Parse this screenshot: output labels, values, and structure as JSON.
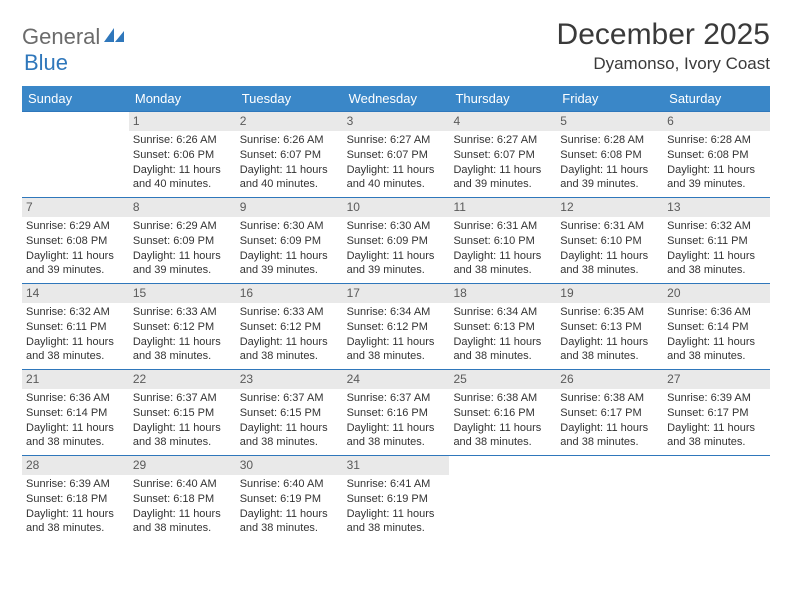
{
  "logo": {
    "word1": "General",
    "word2": "Blue"
  },
  "colors": {
    "brand_blue": "#2f77bb",
    "header_blue": "#3a87c8",
    "rule_blue": "#2f77bb",
    "daynum_bg": "#e9e9e9",
    "text": "#333333",
    "logo_gray": "#6b6b6b"
  },
  "title": "December 2025",
  "location": "Dyamonso, Ivory Coast",
  "days_of_week": [
    "Sunday",
    "Monday",
    "Tuesday",
    "Wednesday",
    "Thursday",
    "Friday",
    "Saturday"
  ],
  "weeks": [
    [
      {
        "blank": true
      },
      {
        "num": "1",
        "sunrise": "Sunrise: 6:26 AM",
        "sunset": "Sunset: 6:06 PM",
        "daylight1": "Daylight: 11 hours",
        "daylight2": "and 40 minutes."
      },
      {
        "num": "2",
        "sunrise": "Sunrise: 6:26 AM",
        "sunset": "Sunset: 6:07 PM",
        "daylight1": "Daylight: 11 hours",
        "daylight2": "and 40 minutes."
      },
      {
        "num": "3",
        "sunrise": "Sunrise: 6:27 AM",
        "sunset": "Sunset: 6:07 PM",
        "daylight1": "Daylight: 11 hours",
        "daylight2": "and 40 minutes."
      },
      {
        "num": "4",
        "sunrise": "Sunrise: 6:27 AM",
        "sunset": "Sunset: 6:07 PM",
        "daylight1": "Daylight: 11 hours",
        "daylight2": "and 39 minutes."
      },
      {
        "num": "5",
        "sunrise": "Sunrise: 6:28 AM",
        "sunset": "Sunset: 6:08 PM",
        "daylight1": "Daylight: 11 hours",
        "daylight2": "and 39 minutes."
      },
      {
        "num": "6",
        "sunrise": "Sunrise: 6:28 AM",
        "sunset": "Sunset: 6:08 PM",
        "daylight1": "Daylight: 11 hours",
        "daylight2": "and 39 minutes."
      }
    ],
    [
      {
        "num": "7",
        "sunrise": "Sunrise: 6:29 AM",
        "sunset": "Sunset: 6:08 PM",
        "daylight1": "Daylight: 11 hours",
        "daylight2": "and 39 minutes."
      },
      {
        "num": "8",
        "sunrise": "Sunrise: 6:29 AM",
        "sunset": "Sunset: 6:09 PM",
        "daylight1": "Daylight: 11 hours",
        "daylight2": "and 39 minutes."
      },
      {
        "num": "9",
        "sunrise": "Sunrise: 6:30 AM",
        "sunset": "Sunset: 6:09 PM",
        "daylight1": "Daylight: 11 hours",
        "daylight2": "and 39 minutes."
      },
      {
        "num": "10",
        "sunrise": "Sunrise: 6:30 AM",
        "sunset": "Sunset: 6:09 PM",
        "daylight1": "Daylight: 11 hours",
        "daylight2": "and 39 minutes."
      },
      {
        "num": "11",
        "sunrise": "Sunrise: 6:31 AM",
        "sunset": "Sunset: 6:10 PM",
        "daylight1": "Daylight: 11 hours",
        "daylight2": "and 38 minutes."
      },
      {
        "num": "12",
        "sunrise": "Sunrise: 6:31 AM",
        "sunset": "Sunset: 6:10 PM",
        "daylight1": "Daylight: 11 hours",
        "daylight2": "and 38 minutes."
      },
      {
        "num": "13",
        "sunrise": "Sunrise: 6:32 AM",
        "sunset": "Sunset: 6:11 PM",
        "daylight1": "Daylight: 11 hours",
        "daylight2": "and 38 minutes."
      }
    ],
    [
      {
        "num": "14",
        "sunrise": "Sunrise: 6:32 AM",
        "sunset": "Sunset: 6:11 PM",
        "daylight1": "Daylight: 11 hours",
        "daylight2": "and 38 minutes."
      },
      {
        "num": "15",
        "sunrise": "Sunrise: 6:33 AM",
        "sunset": "Sunset: 6:12 PM",
        "daylight1": "Daylight: 11 hours",
        "daylight2": "and 38 minutes."
      },
      {
        "num": "16",
        "sunrise": "Sunrise: 6:33 AM",
        "sunset": "Sunset: 6:12 PM",
        "daylight1": "Daylight: 11 hours",
        "daylight2": "and 38 minutes."
      },
      {
        "num": "17",
        "sunrise": "Sunrise: 6:34 AM",
        "sunset": "Sunset: 6:12 PM",
        "daylight1": "Daylight: 11 hours",
        "daylight2": "and 38 minutes."
      },
      {
        "num": "18",
        "sunrise": "Sunrise: 6:34 AM",
        "sunset": "Sunset: 6:13 PM",
        "daylight1": "Daylight: 11 hours",
        "daylight2": "and 38 minutes."
      },
      {
        "num": "19",
        "sunrise": "Sunrise: 6:35 AM",
        "sunset": "Sunset: 6:13 PM",
        "daylight1": "Daylight: 11 hours",
        "daylight2": "and 38 minutes."
      },
      {
        "num": "20",
        "sunrise": "Sunrise: 6:36 AM",
        "sunset": "Sunset: 6:14 PM",
        "daylight1": "Daylight: 11 hours",
        "daylight2": "and 38 minutes."
      }
    ],
    [
      {
        "num": "21",
        "sunrise": "Sunrise: 6:36 AM",
        "sunset": "Sunset: 6:14 PM",
        "daylight1": "Daylight: 11 hours",
        "daylight2": "and 38 minutes."
      },
      {
        "num": "22",
        "sunrise": "Sunrise: 6:37 AM",
        "sunset": "Sunset: 6:15 PM",
        "daylight1": "Daylight: 11 hours",
        "daylight2": "and 38 minutes."
      },
      {
        "num": "23",
        "sunrise": "Sunrise: 6:37 AM",
        "sunset": "Sunset: 6:15 PM",
        "daylight1": "Daylight: 11 hours",
        "daylight2": "and 38 minutes."
      },
      {
        "num": "24",
        "sunrise": "Sunrise: 6:37 AM",
        "sunset": "Sunset: 6:16 PM",
        "daylight1": "Daylight: 11 hours",
        "daylight2": "and 38 minutes."
      },
      {
        "num": "25",
        "sunrise": "Sunrise: 6:38 AM",
        "sunset": "Sunset: 6:16 PM",
        "daylight1": "Daylight: 11 hours",
        "daylight2": "and 38 minutes."
      },
      {
        "num": "26",
        "sunrise": "Sunrise: 6:38 AM",
        "sunset": "Sunset: 6:17 PM",
        "daylight1": "Daylight: 11 hours",
        "daylight2": "and 38 minutes."
      },
      {
        "num": "27",
        "sunrise": "Sunrise: 6:39 AM",
        "sunset": "Sunset: 6:17 PM",
        "daylight1": "Daylight: 11 hours",
        "daylight2": "and 38 minutes."
      }
    ],
    [
      {
        "num": "28",
        "sunrise": "Sunrise: 6:39 AM",
        "sunset": "Sunset: 6:18 PM",
        "daylight1": "Daylight: 11 hours",
        "daylight2": "and 38 minutes."
      },
      {
        "num": "29",
        "sunrise": "Sunrise: 6:40 AM",
        "sunset": "Sunset: 6:18 PM",
        "daylight1": "Daylight: 11 hours",
        "daylight2": "and 38 minutes."
      },
      {
        "num": "30",
        "sunrise": "Sunrise: 6:40 AM",
        "sunset": "Sunset: 6:19 PM",
        "daylight1": "Daylight: 11 hours",
        "daylight2": "and 38 minutes."
      },
      {
        "num": "31",
        "sunrise": "Sunrise: 6:41 AM",
        "sunset": "Sunset: 6:19 PM",
        "daylight1": "Daylight: 11 hours",
        "daylight2": "and 38 minutes."
      },
      {
        "blank": true
      },
      {
        "blank": true
      },
      {
        "blank": true
      }
    ]
  ]
}
